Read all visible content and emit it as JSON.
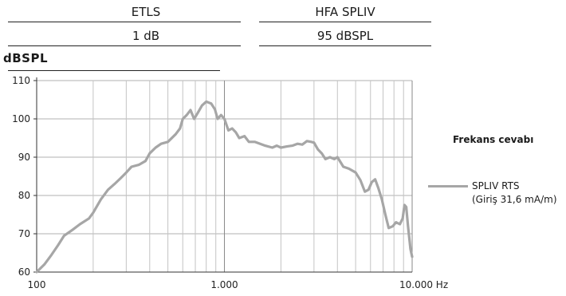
{
  "header": {
    "col1_title": "ETLS",
    "col1_value": "1 dB",
    "col2_title": "HFA SPLIV",
    "col2_value": "95 dBSPL"
  },
  "unit_label": "dBSPL",
  "chart_data": {
    "type": "line",
    "title": "Frekans cevabı",
    "ylabel": "dBSPL",
    "xlabel": "",
    "x_scale": "log",
    "xlim": [
      100,
      10000
    ],
    "ylim": [
      60,
      110
    ],
    "x_ticks": [
      "100",
      "1.000",
      "10.000 Hz"
    ],
    "y_ticks": [
      "60",
      "70",
      "80",
      "90",
      "100",
      "110"
    ],
    "grid": true,
    "legend_position": "right",
    "series": [
      {
        "name": "SPLIV RTS",
        "name_line2": "(Giriş 31,6 mA/m)",
        "color": "#a6a6a6",
        "points": [
          [
            100,
            60
          ],
          [
            110,
            62
          ],
          [
            120,
            64.5
          ],
          [
            130,
            67
          ],
          [
            140,
            69.5
          ],
          [
            155,
            71
          ],
          [
            170,
            72.5
          ],
          [
            190,
            74
          ],
          [
            200,
            75.5
          ],
          [
            220,
            79
          ],
          [
            240,
            81.5
          ],
          [
            260,
            83
          ],
          [
            280,
            84.5
          ],
          [
            300,
            86
          ],
          [
            320,
            87.5
          ],
          [
            350,
            88
          ],
          [
            380,
            89
          ],
          [
            400,
            91
          ],
          [
            430,
            92.5
          ],
          [
            460,
            93.5
          ],
          [
            500,
            94
          ],
          [
            550,
            96
          ],
          [
            580,
            97.5
          ],
          [
            600,
            100
          ],
          [
            630,
            101
          ],
          [
            660,
            102.3
          ],
          [
            690,
            100
          ],
          [
            720,
            101.5
          ],
          [
            760,
            103.5
          ],
          [
            800,
            104.5
          ],
          [
            850,
            104
          ],
          [
            890,
            102.5
          ],
          [
            920,
            100
          ],
          [
            960,
            101
          ],
          [
            1000,
            100
          ],
          [
            1050,
            97
          ],
          [
            1100,
            97.5
          ],
          [
            1150,
            96.5
          ],
          [
            1200,
            95
          ],
          [
            1280,
            95.5
          ],
          [
            1350,
            94
          ],
          [
            1450,
            94
          ],
          [
            1550,
            93.5
          ],
          [
            1650,
            93
          ],
          [
            1800,
            92.5
          ],
          [
            1900,
            93
          ],
          [
            2000,
            92.5
          ],
          [
            2150,
            92.8
          ],
          [
            2300,
            93
          ],
          [
            2450,
            93.5
          ],
          [
            2600,
            93.3
          ],
          [
            2750,
            94.2
          ],
          [
            2900,
            94
          ],
          [
            3000,
            93.8
          ],
          [
            3150,
            92
          ],
          [
            3300,
            91
          ],
          [
            3450,
            89.5
          ],
          [
            3650,
            90
          ],
          [
            3850,
            89.5
          ],
          [
            4000,
            90
          ],
          [
            4300,
            87.5
          ],
          [
            4600,
            87
          ],
          [
            5000,
            86
          ],
          [
            5300,
            84
          ],
          [
            5600,
            81
          ],
          [
            5850,
            81.5
          ],
          [
            6100,
            83.5
          ],
          [
            6350,
            84.2
          ],
          [
            6600,
            82
          ],
          [
            6900,
            79
          ],
          [
            7200,
            75
          ],
          [
            7500,
            71.5
          ],
          [
            7900,
            72
          ],
          [
            8200,
            73
          ],
          [
            8600,
            72.5
          ],
          [
            8900,
            74
          ],
          [
            9100,
            77.5
          ],
          [
            9300,
            77
          ],
          [
            9500,
            72
          ],
          [
            9800,
            66
          ],
          [
            10000,
            64
          ]
        ]
      }
    ]
  }
}
